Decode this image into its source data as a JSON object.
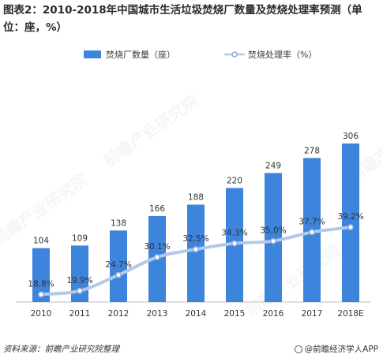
{
  "title": "图表2：2010-2018年中国城市生活垃圾焚烧厂数量及焚烧处理率预测（单位：座，%）",
  "legend": {
    "bar_label": "焚烧厂数量（座）",
    "line_label": "焚烧处理率（%）"
  },
  "watermark": "前瞻产业研究院",
  "footer": {
    "source": "资料来源：前瞻产业研究院整理",
    "brand": "@前瞻经济学人APP"
  },
  "colors": {
    "bar": "#3d84dc",
    "line": "#b4c9e8",
    "marker": "#8eaedc"
  },
  "chart_data": {
    "type": "bar",
    "title": "图表2：2010-2018年中国城市生活垃圾焚烧厂数量及焚烧处理率预测（单位：座，%）",
    "categories": [
      "2010",
      "2011",
      "2012",
      "2013",
      "2014",
      "2015",
      "2016",
      "2017",
      "2018E"
    ],
    "series": [
      {
        "name": "焚烧厂数量（座）",
        "type": "bar",
        "values": [
          104,
          109,
          138,
          166,
          188,
          220,
          249,
          278,
          306
        ],
        "labels": [
          "104",
          "109",
          "138",
          "166",
          "188",
          "220",
          "249",
          "278",
          "306"
        ]
      },
      {
        "name": "焚烧处理率（%）",
        "type": "line",
        "values": [
          18.8,
          19.9,
          24.7,
          30.1,
          32.5,
          34.3,
          35.0,
          37.7,
          39.2
        ],
        "labels": [
          "18.8%",
          "19.9%",
          "24.7%",
          "30.1%",
          "32.5%",
          "34.3%",
          "35.0%",
          "37.7%",
          "39.2%"
        ]
      }
    ],
    "legend_position": "top",
    "grid": false
  }
}
